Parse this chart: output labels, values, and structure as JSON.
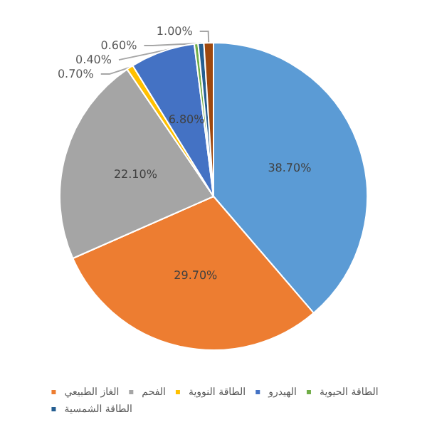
{
  "chart_data": {
    "type": "pie",
    "categories": [
      null,
      "الغاز الطبيعي",
      "الفحم",
      "الطاقة النووية",
      "الهيدرو",
      "الطاقة الحيوية",
      "الطاقة الشمسية",
      null
    ],
    "values": [
      38.7,
      29.7,
      22.1,
      0.7,
      6.8,
      0.4,
      0.6,
      1.0
    ],
    "value_labels": [
      "38.70%",
      "29.70%",
      "22.10%",
      "0.70%",
      "6.80%",
      "0.40%",
      "0.60%",
      "1.00%"
    ],
    "colors": [
      "#5b9bd5",
      "#ed7d31",
      "#a5a5a5",
      "#ffc000",
      "#4472c4",
      "#70ad47",
      "#255e91",
      "#9e480e"
    ],
    "legend": "bottom"
  }
}
